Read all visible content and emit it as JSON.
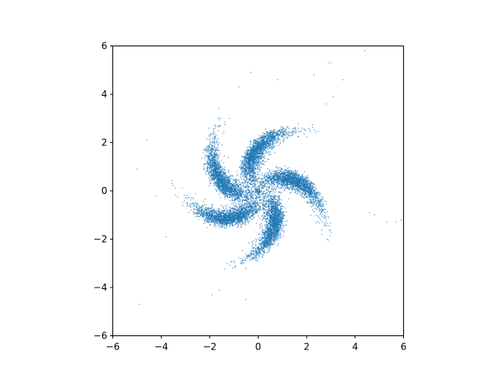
{
  "chart_data": {
    "type": "scatter",
    "title": "",
    "xlabel": "",
    "ylabel": "",
    "xlim": [
      -6,
      6
    ],
    "ylim": [
      -6,
      6
    ],
    "xticks": [
      -6,
      -4,
      -2,
      0,
      2,
      4,
      6
    ],
    "yticks": [
      -6,
      -4,
      -2,
      0,
      2,
      4,
      6
    ],
    "xtick_labels": [
      "−6",
      "−4",
      "−2",
      "0",
      "2",
      "4",
      "6"
    ],
    "ytick_labels": [
      "−6",
      "−4",
      "−2",
      "0",
      "2",
      "4",
      "6"
    ],
    "grid": false,
    "legend": "none",
    "color": "#1f77b4",
    "marker_size": 1,
    "shape": "pinwheel",
    "arms": 5,
    "n_points": 10000,
    "arm_center_angles_deg": [
      95,
      15,
      -65,
      -135,
      165
    ],
    "arm_center_radius": 1.6,
    "spiral_curvature": -0.35,
    "outliers": [
      {
        "x": -5.0,
        "y": 0.9
      },
      {
        "x": -4.6,
        "y": 2.1
      },
      {
        "x": -4.2,
        "y": -0.2
      },
      {
        "x": -3.8,
        "y": -1.9
      },
      {
        "x": -4.9,
        "y": -4.7
      },
      {
        "x": -1.9,
        "y": -4.3
      },
      {
        "x": -1.6,
        "y": -4.1
      },
      {
        "x": -0.5,
        "y": -4.5
      },
      {
        "x": -0.8,
        "y": 4.3
      },
      {
        "x": -0.3,
        "y": 4.9
      },
      {
        "x": 0.8,
        "y": 4.6
      },
      {
        "x": 2.3,
        "y": 4.8
      },
      {
        "x": 2.9,
        "y": 5.3
      },
      {
        "x": 3.0,
        "y": 5.3
      },
      {
        "x": 3.5,
        "y": 4.6
      },
      {
        "x": 4.4,
        "y": 5.8
      },
      {
        "x": 4.6,
        "y": -0.9
      },
      {
        "x": 4.8,
        "y": -1.0
      },
      {
        "x": 5.3,
        "y": -1.3
      },
      {
        "x": 5.7,
        "y": -1.3
      },
      {
        "x": 5.9,
        "y": -1.2
      },
      {
        "x": 2.8,
        "y": 3.6
      },
      {
        "x": 3.1,
        "y": 3.9
      }
    ]
  }
}
